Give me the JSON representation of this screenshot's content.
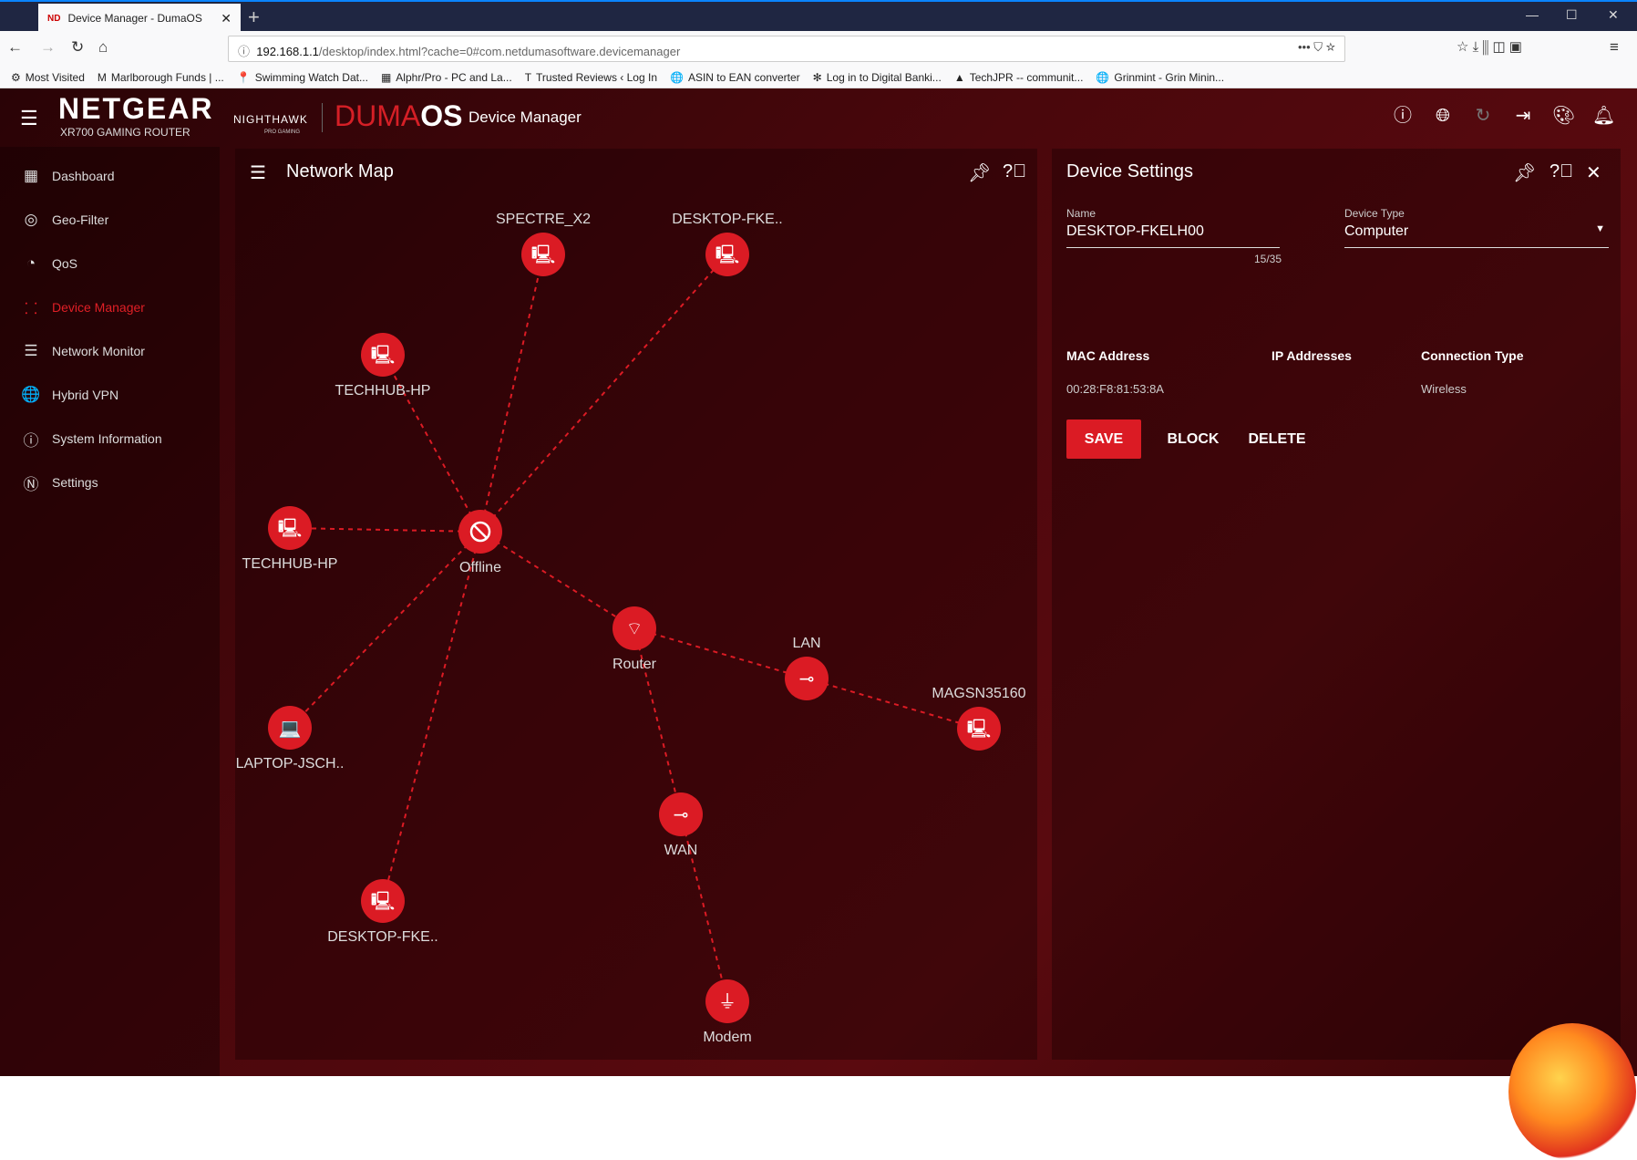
{
  "browser": {
    "tab_title": "Device Manager - DumaOS",
    "tab_favicon": "ND",
    "url_host": "192.168.1.1",
    "url_path": "/desktop/index.html?cache=0#com.netdumasoftware.devicemanager",
    "bookmarks": [
      {
        "icon": "gear-icon",
        "glyph": "⚙",
        "label": "Most Visited"
      },
      {
        "icon": "m-icon",
        "glyph": "M",
        "label": "Marlborough Funds | ..."
      },
      {
        "icon": "pin-icon",
        "glyph": "📍",
        "label": "Swimming Watch Dat..."
      },
      {
        "icon": "sheet-icon",
        "glyph": "▦",
        "label": "Alphr/Pro - PC and La..."
      },
      {
        "icon": "t-icon",
        "glyph": "T",
        "label": "Trusted Reviews ‹ Log In"
      },
      {
        "icon": "globe-icon",
        "glyph": "🌐",
        "label": "ASIN to EAN converter"
      },
      {
        "icon": "bank-icon",
        "glyph": "✻",
        "label": "Log in to Digital Banki..."
      },
      {
        "icon": "drive-icon",
        "glyph": "▲",
        "label": "TechJPR -- communit..."
      },
      {
        "icon": "globe-icon",
        "glyph": "🌐",
        "label": "Grinmint - Grin Minin..."
      }
    ]
  },
  "header": {
    "brand": "NETGEAR",
    "brand_sub": "XR700 GAMING ROUTER",
    "nighthawk": "NIGHTHAWK",
    "nighthawk_sub": "PRO GAMING",
    "duma": "DUMA",
    "os": "OS",
    "app_name": "Device Manager"
  },
  "sidebar": {
    "items": [
      {
        "label": "Dashboard",
        "icon": "dashboard-icon",
        "glyph": "▦"
      },
      {
        "label": "Geo-Filter",
        "icon": "geo-filter-icon",
        "glyph": "◎"
      },
      {
        "label": "QoS",
        "icon": "qos-icon",
        "glyph": "◔"
      },
      {
        "label": "Device Manager",
        "icon": "device-manager-icon",
        "glyph": "⸬",
        "active": true
      },
      {
        "label": "Network Monitor",
        "icon": "network-monitor-icon",
        "glyph": "☰"
      },
      {
        "label": "Hybrid VPN",
        "icon": "vpn-globe-icon",
        "glyph": "🌐"
      },
      {
        "label": "System Information",
        "icon": "system-info-icon",
        "glyph": "ⓘ"
      },
      {
        "label": "Settings",
        "icon": "settings-icon",
        "glyph": "Ⓝ"
      }
    ]
  },
  "map": {
    "title": "Network Map",
    "accent": "#db1b24",
    "nodes": [
      {
        "id": "spectre",
        "label": "SPECTRE_X2",
        "icon": "computer-icon"
      },
      {
        "id": "desk1",
        "label": "DESKTOP-FKE..",
        "icon": "computer-icon"
      },
      {
        "id": "tech1",
        "label": "TECHHUB-HP",
        "icon": "computer-icon"
      },
      {
        "id": "offline",
        "label": "Offline",
        "icon": "blocked-icon"
      },
      {
        "id": "tech2",
        "label": "TECHHUB-HP",
        "icon": "computer-icon"
      },
      {
        "id": "router",
        "label": "Router",
        "icon": "router-icon"
      },
      {
        "id": "lan",
        "label": "LAN",
        "icon": "ethernet-icon"
      },
      {
        "id": "magsn",
        "label": "MAGSN35160",
        "icon": "computer-icon"
      },
      {
        "id": "laptop",
        "label": "LAPTOP-JSCH..",
        "icon": "laptop-icon"
      },
      {
        "id": "wan",
        "label": "WAN",
        "icon": "ethernet-icon"
      },
      {
        "id": "desk2",
        "label": "DESKTOP-FKE..",
        "icon": "computer-icon"
      },
      {
        "id": "modem",
        "label": "Modem",
        "icon": "modem-icon"
      }
    ],
    "edges": [
      [
        "offline",
        "spectre"
      ],
      [
        "offline",
        "desk1"
      ],
      [
        "offline",
        "tech1"
      ],
      [
        "offline",
        "tech2"
      ],
      [
        "offline",
        "laptop"
      ],
      [
        "offline",
        "desk2"
      ],
      [
        "offline",
        "router"
      ],
      [
        "router",
        "lan"
      ],
      [
        "router",
        "wan"
      ],
      [
        "lan",
        "magsn"
      ],
      [
        "wan",
        "modem"
      ]
    ]
  },
  "settings": {
    "title": "Device Settings",
    "name_label": "Name",
    "name_value": "DESKTOP-FKELH00",
    "name_counter": "15/35",
    "type_label": "Device Type",
    "type_value": "Computer",
    "mac_header": "MAC Address",
    "ip_header": "IP Addresses",
    "conn_header": "Connection Type",
    "mac_value": "00:28:F8:81:53:8A",
    "ip_value": "",
    "conn_value": "Wireless",
    "save": "SAVE",
    "block": "BLOCK",
    "delete": "DELETE"
  }
}
